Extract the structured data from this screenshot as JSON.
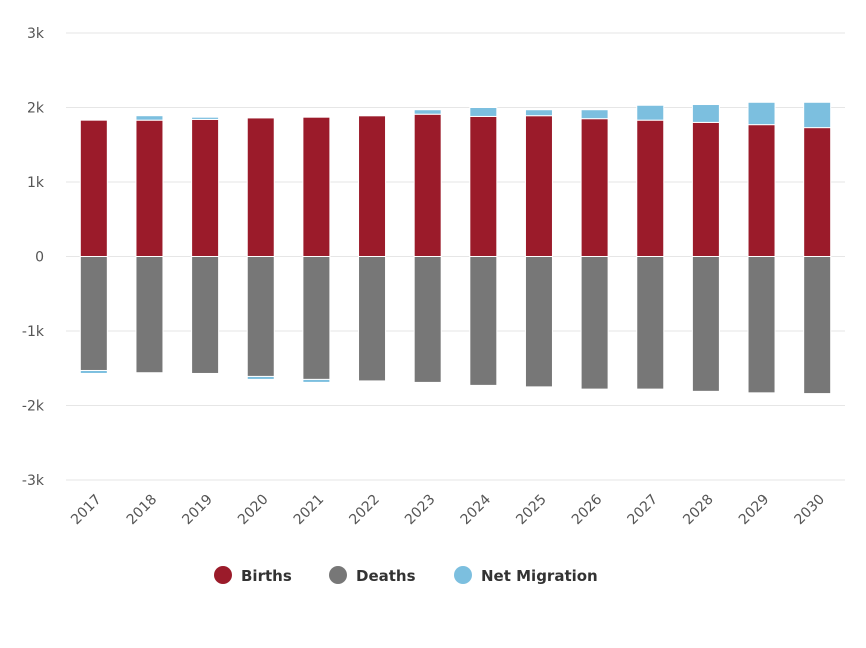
{
  "chart_data": {
    "type": "bar",
    "stacked": true,
    "categories": [
      "2017",
      "2018",
      "2019",
      "2020",
      "2021",
      "2022",
      "2023",
      "2024",
      "2025",
      "2026",
      "2027",
      "2028",
      "2029",
      "2030"
    ],
    "series": [
      {
        "name": "Births",
        "color": "#9b1b2a",
        "values": [
          1830,
          1830,
          1840,
          1860,
          1870,
          1890,
          1910,
          1880,
          1890,
          1850,
          1830,
          1800,
          1770,
          1730
        ]
      },
      {
        "name": "Deaths",
        "color": "#777777",
        "values": [
          -1530,
          -1560,
          -1570,
          -1610,
          -1650,
          -1670,
          -1690,
          -1730,
          -1750,
          -1780,
          -1780,
          -1810,
          -1830,
          -1840
        ]
      },
      {
        "name": "Net Migration",
        "color": "#7cbfdf",
        "values": [
          -40,
          60,
          30,
          -40,
          -40,
          10,
          60,
          120,
          80,
          120,
          200,
          240,
          300,
          340
        ]
      }
    ],
    "ylim": [
      -3000,
      3000
    ],
    "yticks": [
      3000,
      2000,
      1000,
      0,
      -1000,
      -2000,
      -3000
    ],
    "ytick_labels": [
      "3k",
      "2k",
      "1k",
      "0",
      "-1k",
      "-2k",
      "-3k"
    ],
    "grid": true,
    "legend": "bottom-center"
  }
}
